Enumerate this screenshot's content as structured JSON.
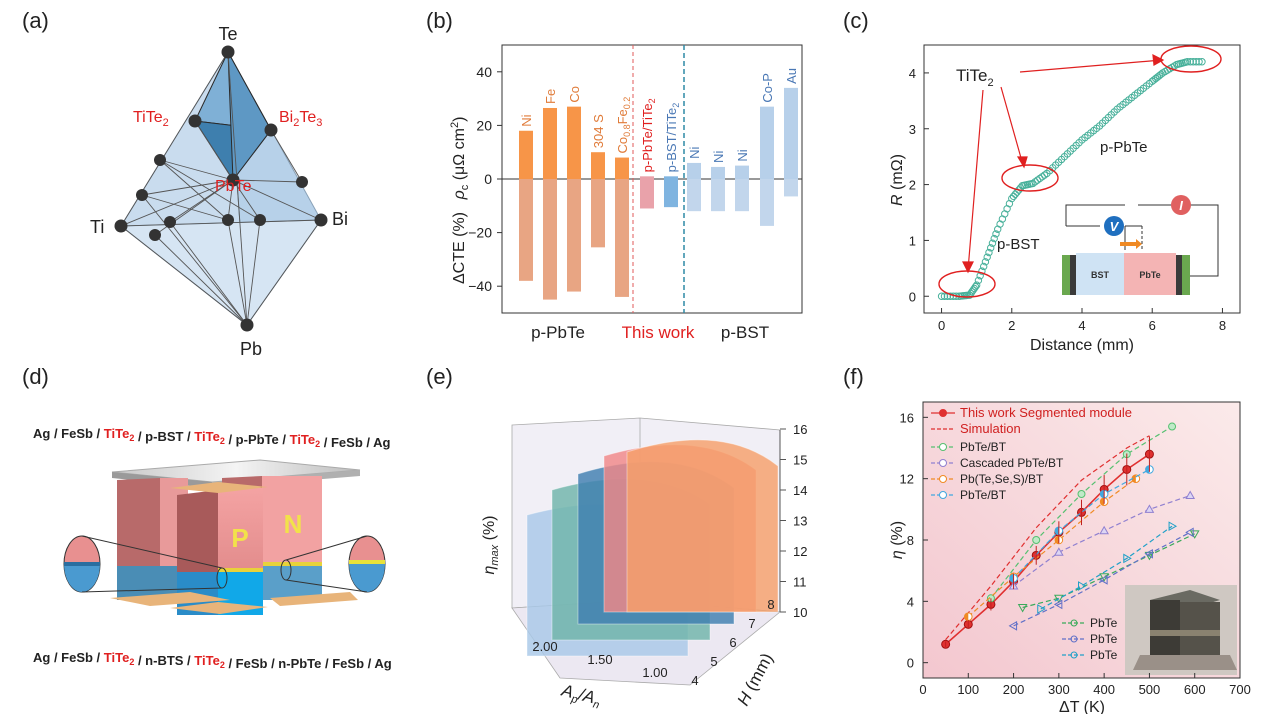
{
  "panels": {
    "a": "(a)",
    "b": "(b)",
    "c": "(c)",
    "d": "(d)",
    "e": "(e)",
    "f": "(f)"
  },
  "panel_a": {
    "vertices": {
      "top": "Te",
      "left": "Ti",
      "right": "Bi",
      "bottom": "Pb"
    },
    "compounds": [
      {
        "name": "TiTe",
        "sub": "2",
        "suffix": ""
      },
      {
        "name": "Bi",
        "sub": "2",
        "suffix": "Te"
      },
      {
        "name": "PbTe",
        "sub": "",
        "suffix": ""
      }
    ],
    "bi2te3_tail": {
      "text": "Te",
      "sub": "3"
    },
    "colors": {
      "face": "#b8d3ea",
      "dark": "#3f7eaa",
      "mid": "#6fa4cc",
      "red": "#e02020"
    }
  },
  "panel_b": {
    "ylabel_top": "ρc (μΩ cm²)",
    "ylabel_top_parts": {
      "rho": "ρ",
      "sub": "c",
      "unit": " (μΩ cm",
      "sup": "2",
      "close": ")"
    },
    "ylabel_bottom": "ΔCTE (%)",
    "yticks": [
      "40",
      "20",
      "0",
      "−20",
      "−40"
    ],
    "groups": [
      "p-PbTe",
      "This work",
      "p-BST"
    ],
    "colors": {
      "pbte_top": "#f79548",
      "pbte_bottom": "#e8a583",
      "this_work": "#e9a2aa",
      "this_work_bst": "#7fb4e0",
      "bst_top": "#b7d0ea",
      "bst_bottom": "#c2d6ec",
      "orange_text": "#e07b39",
      "red_text": "#e02020",
      "blue_text": "#4a78b5",
      "teal_dash": "#3a8fa8"
    }
  },
  "chart_data": [
    {
      "type": "bar",
      "title": "",
      "xlabel": "",
      "ylabel": "ρc (μΩ cm²) / ΔCTE (%)",
      "ylim": [
        -50,
        50
      ],
      "categories": [
        "Ni",
        "Fe",
        "Co",
        "304 S",
        "Co0.8Fe0.2",
        "p-PbTe/TiTe2",
        "p-BST/TiTe2",
        "Ni",
        "Ni",
        "Ni",
        "Co-P",
        "Au"
      ],
      "series": [
        {
          "name": "ρc",
          "values": [
            18,
            26.5,
            27,
            10,
            8,
            1,
            1,
            6,
            4.5,
            5,
            27,
            34
          ]
        },
        {
          "name": "ΔCTE",
          "values": [
            -38,
            -45,
            -42,
            -25.5,
            -44,
            -11,
            -10.5,
            -12,
            -12,
            -12,
            -17.5,
            -6.5
          ]
        }
      ]
    },
    {
      "type": "scatter",
      "title": "",
      "xlabel": "Distance (mm)",
      "ylabel": "R (mΩ)",
      "xlim": [
        -0.5,
        8.5
      ],
      "ylim": [
        -0.3,
        4.5
      ],
      "xticks": [
        0,
        2,
        4,
        6,
        8
      ],
      "yticks": [
        0,
        1,
        2,
        3,
        4
      ],
      "x": [
        0,
        0.5,
        0.8,
        1.0,
        1.3,
        1.6,
        2.0,
        2.3,
        2.6,
        3.0,
        3.5,
        4.0,
        4.5,
        5.0,
        5.5,
        6.0,
        6.3,
        6.7,
        7.0,
        7.5
      ],
      "y": [
        0.0,
        0.0,
        0.02,
        0.2,
        0.7,
        1.2,
        1.75,
        1.98,
        2.02,
        2.2,
        2.5,
        2.8,
        3.05,
        3.35,
        3.6,
        3.85,
        4.0,
        4.15,
        4.2,
        4.2
      ],
      "annotations": [
        "TiTe2",
        "p-PbTe",
        "p-BST"
      ],
      "inset": {
        "v": "V",
        "i": "I",
        "bst": "BST",
        "pbte": "PbTe"
      }
    },
    {
      "type": "surface",
      "title": "",
      "xlabel": "Ap/An",
      "ylabel": "H (mm)",
      "zlabel": "ηmax (%)",
      "x_ticks": [
        "2.00",
        "1.50",
        "1.00"
      ],
      "y_ticks": [
        "4",
        "5",
        "6",
        "7",
        "8"
      ],
      "z_ticks": [
        "10",
        "11",
        "12",
        "13",
        "14",
        "15",
        "16"
      ],
      "layer_colors": [
        "#a8c8e8",
        "#6fb5aa",
        "#3f7fb0",
        "#f08888",
        "#f5a06a"
      ]
    },
    {
      "type": "line",
      "title": "",
      "xlabel": "ΔT (K)",
      "ylabel": "η (%)",
      "xlim": [
        0,
        700
      ],
      "ylim": [
        -1,
        17
      ],
      "xticks": [
        0,
        100,
        200,
        300,
        400,
        500,
        600,
        700
      ],
      "yticks": [
        0,
        4,
        8,
        12,
        16
      ],
      "series": [
        {
          "name": "This work  Segmented module",
          "color": "#e03030",
          "x": [
            50,
            100,
            150,
            200,
            250,
            300,
            350,
            400,
            450,
            500
          ],
          "y": [
            1.2,
            2.5,
            3.8,
            5.3,
            7.0,
            8.5,
            9.8,
            11.3,
            12.6,
            13.6
          ]
        },
        {
          "name": "Simulation",
          "color": "#e03030",
          "x": [
            50,
            150,
            250,
            350,
            450,
            500
          ],
          "y": [
            1.5,
            5.0,
            8.8,
            11.9,
            14.0,
            14.8
          ]
        },
        {
          "name": "PbTe/BT",
          "color": "#55c070",
          "x": [
            150,
            250,
            350,
            450,
            550
          ],
          "y": [
            4.2,
            8.0,
            11.0,
            13.6,
            15.4
          ]
        },
        {
          "name": "Cascaded PbTe/BT",
          "color": "#9080d0",
          "x": [
            200,
            300,
            400,
            500,
            590
          ],
          "y": [
            5.0,
            7.2,
            8.6,
            10.0,
            10.9
          ]
        },
        {
          "name": "Pb(Te,Se,S)/BT",
          "color": "#f08a24",
          "x": [
            100,
            200,
            300,
            400,
            470
          ],
          "y": [
            3.0,
            5.6,
            8.0,
            10.5,
            12.0
          ]
        },
        {
          "name": "PbTe/BT",
          "color": "#40a8e0",
          "x": [
            200,
            300,
            400,
            500
          ],
          "y": [
            5.5,
            8.6,
            11.0,
            12.6
          ]
        },
        {
          "name": "PbTe",
          "color": "#3aaa5a",
          "x": [
            220,
            300,
            400,
            500,
            600
          ],
          "y": [
            3.6,
            4.2,
            5.6,
            7.0,
            8.4
          ]
        },
        {
          "name": "PbTe",
          "color": "#6070c8",
          "x": [
            200,
            300,
            400,
            500,
            590
          ],
          "y": [
            2.4,
            3.8,
            5.4,
            7.1,
            8.5
          ]
        },
        {
          "name": "PbTe",
          "color": "#20a0c8",
          "x": [
            260,
            350,
            450,
            550
          ],
          "y": [
            3.5,
            5.0,
            6.8,
            8.9
          ]
        }
      ]
    }
  ],
  "panel_d": {
    "top_stack": [
      {
        "t": "Ag / FeSb / ",
        "red": false
      },
      {
        "t": "TiTe",
        "red": true,
        "sub": "2"
      },
      {
        "t": " / p-BST / ",
        "red": false
      },
      {
        "t": "TiTe",
        "red": true,
        "sub": "2"
      },
      {
        "t": " / p-PbTe / ",
        "red": false
      },
      {
        "t": "TiTe",
        "red": true,
        "sub": "2"
      },
      {
        "t": " /  FeSb / Ag",
        "red": false
      }
    ],
    "bottom_stack": [
      {
        "t": "Ag / FeSb / ",
        "red": false
      },
      {
        "t": "TiTe",
        "red": true,
        "sub": "2"
      },
      {
        "t": " / n-BTS / ",
        "red": false
      },
      {
        "t": "TiTe",
        "red": true,
        "sub": "2"
      },
      {
        "t": " / FeSb / n-PbTe /  FeSb / Ag",
        "red": false
      }
    ],
    "p_label": "P",
    "n_label": "N"
  },
  "panel_e": {
    "zlabel_parts": {
      "eta": "η",
      "sub": "max",
      "unit": " (%)"
    },
    "xlabel_parts": {
      "a": "A",
      "p": "p",
      "slash": "/A",
      "n": "n"
    },
    "ylabel_parts": {
      "h": "H",
      "unit": " (mm)"
    }
  },
  "panel_f": {
    "ylabel_parts": {
      "eta": "η",
      "unit": " (%)"
    },
    "xlabel_parts": {
      "dt": "ΔT",
      "unit": " (K)"
    },
    "legend_this_work": "This work  Segmented module",
    "legend_sim": "Simulation"
  }
}
